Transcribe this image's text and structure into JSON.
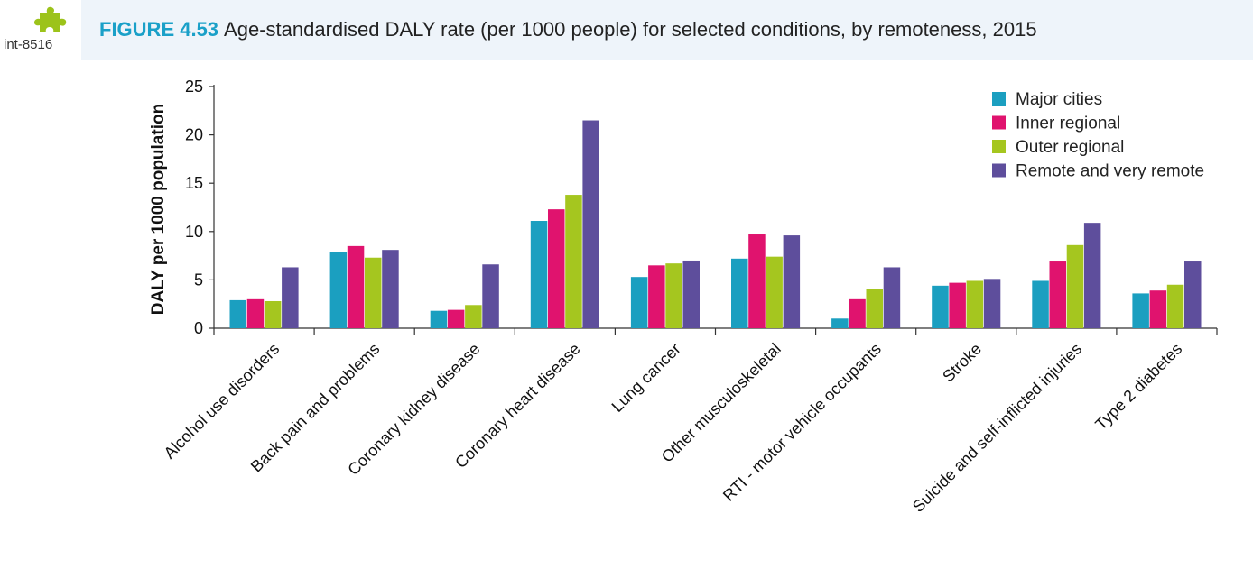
{
  "header": {
    "figure_number": "FIGURE 4.53",
    "title": "Age-standardised DALY rate (per 1000 people) for selected conditions, by remoteness, 2015",
    "interactivity_id": "int-8516",
    "interactivity_icon": "puzzle-piece-icon",
    "accent_color": "#1aa0c8",
    "icon_color": "#9cc31a"
  },
  "chart_data": {
    "type": "bar",
    "title": "",
    "xlabel": "",
    "ylabel": "DALY per 1000 population",
    "ylim": [
      0,
      25
    ],
    "yticks": [
      0,
      5,
      10,
      15,
      20,
      25
    ],
    "grid": false,
    "legend_position": "top-right",
    "categories": [
      "Alcohol use disorders",
      "Back pain and problems",
      "Coronary kidney disease",
      "Coronary heart disease",
      "Lung cancer",
      "Other musculoskeletal",
      "RTI - motor vehicle occupants",
      "Stroke",
      "Suicide and self-inflicted injuries",
      "Type 2 diabetes"
    ],
    "series": [
      {
        "name": "Major cities",
        "color": "#1b9fc0",
        "values": [
          2.9,
          7.9,
          1.8,
          11.1,
          5.3,
          7.2,
          1.0,
          4.4,
          4.9,
          3.6
        ]
      },
      {
        "name": "Inner regional",
        "color": "#e0136e",
        "values": [
          3.0,
          8.5,
          1.9,
          12.3,
          6.5,
          9.7,
          3.0,
          4.7,
          6.9,
          3.9
        ]
      },
      {
        "name": "Outer regional",
        "color": "#a5c61f",
        "values": [
          2.8,
          7.3,
          2.4,
          13.8,
          6.7,
          7.4,
          4.1,
          4.9,
          8.6,
          4.5
        ]
      },
      {
        "name": "Remote and very remote",
        "color": "#5e4e9c",
        "values": [
          6.3,
          8.1,
          6.6,
          21.5,
          7.0,
          9.6,
          6.3,
          5.1,
          10.9,
          6.9
        ]
      }
    ]
  }
}
